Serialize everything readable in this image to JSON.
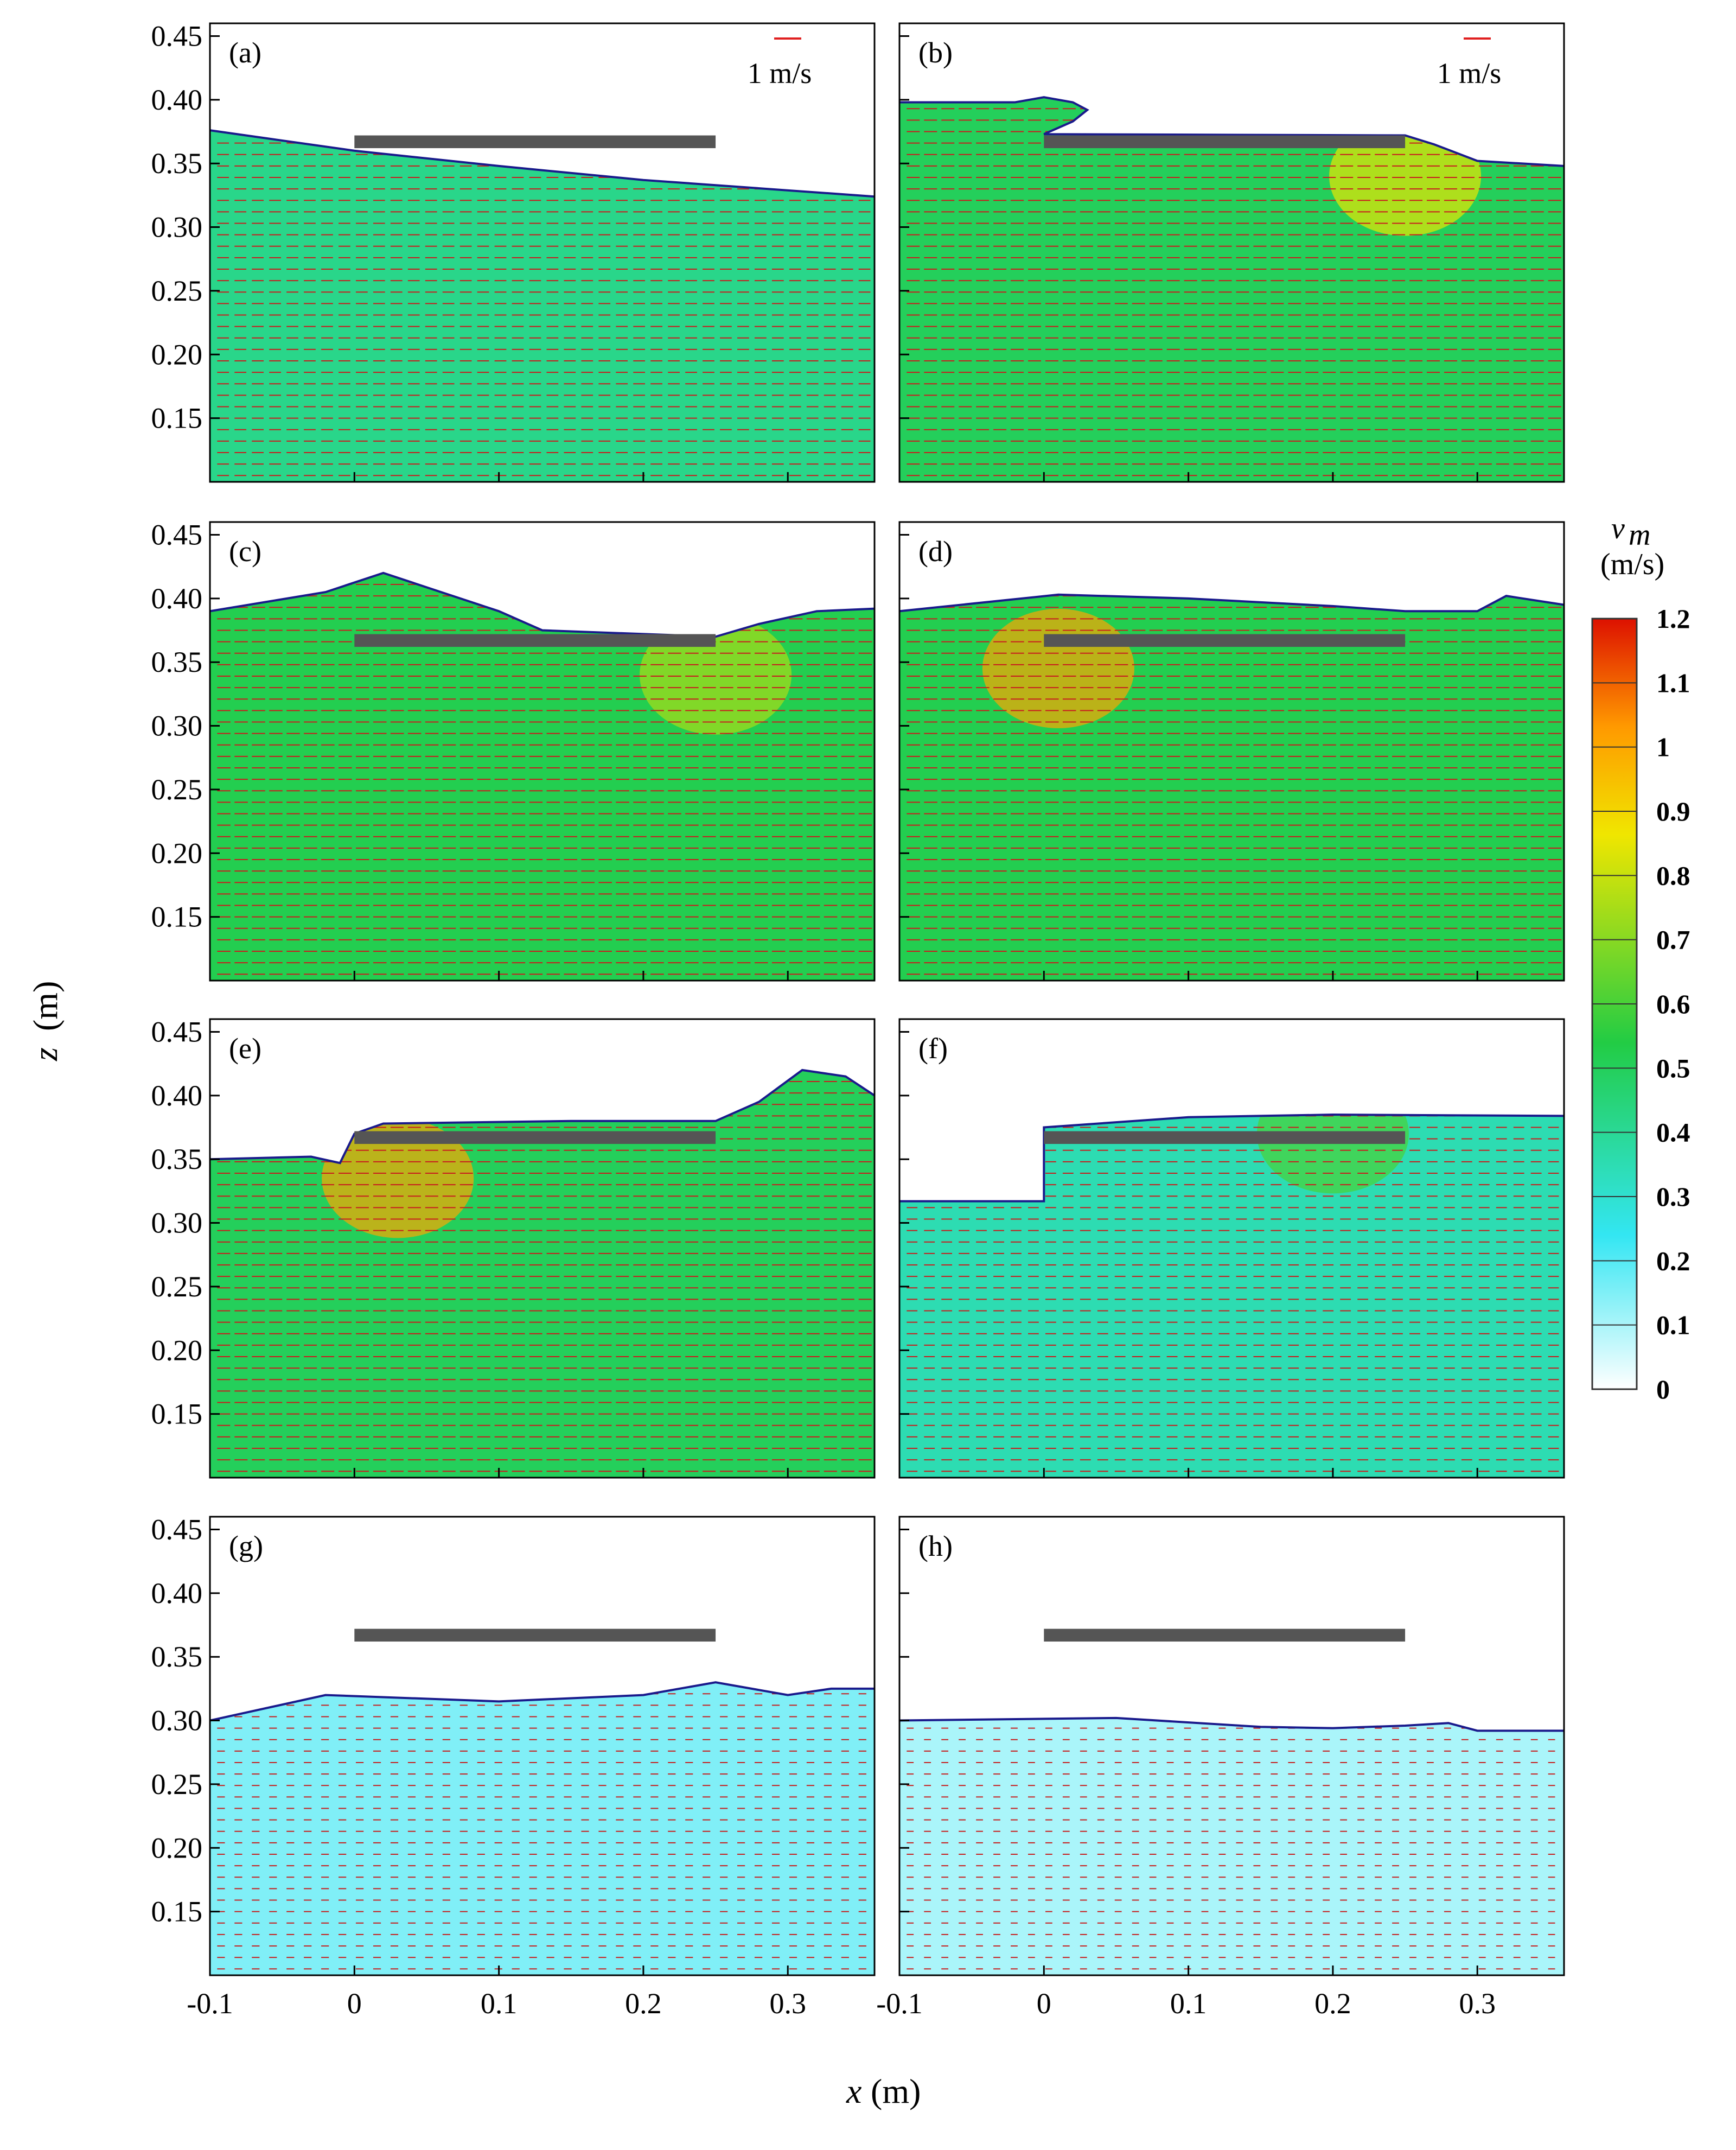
{
  "chart_data": {
    "type": "vector-field",
    "xlabel": "x",
    "xunit": "(m)",
    "ylabel": "z",
    "yunit": "(m)",
    "xlim": [
      -0.1,
      0.36
    ],
    "ylim": [
      0.1,
      0.46
    ],
    "xticks": [
      -0.1,
      0,
      0.1,
      0.2,
      0.3
    ],
    "xtick_labels": [
      "-0.1",
      "0",
      "0.1",
      "0.2",
      "0.3"
    ],
    "yticks": [
      0.15,
      0.2,
      0.25,
      0.3,
      0.35,
      0.4,
      0.45
    ],
    "ytick_labels": [
      "0.15",
      "0.20",
      "0.25",
      "0.30",
      "0.35",
      "0.40",
      "0.45"
    ],
    "reference_vector": {
      "label": "1 m/s",
      "color": "#e02020"
    },
    "deck": {
      "x_start": 0,
      "x_end": 0.25,
      "z_bottom": 0.362,
      "z_top": 0.372,
      "color": "#555555"
    },
    "colorbar": {
      "label_var": "v",
      "label_sub": "m",
      "label_unit": "(m/s)",
      "min": 0,
      "max": 1.2,
      "ticks": [
        0,
        0.1,
        0.2,
        0.3,
        0.4,
        0.5,
        0.6,
        0.7,
        0.8,
        0.9,
        1,
        1.1,
        1.2
      ],
      "tick_labels": [
        "0",
        "0.1",
        "0.2",
        "0.3",
        "0.4",
        "0.5",
        "0.6",
        "0.7",
        "0.8",
        "0.9",
        "1",
        "1.1",
        "1.2"
      ],
      "colors": [
        "#ffffff",
        "#33e6f2",
        "#22cc44",
        "#f0e600",
        "#ff9900",
        "#dd1100"
      ]
    },
    "panels": [
      {
        "label": "(a)",
        "show_reference": true,
        "speed": 0.42,
        "surface": [
          [
            -0.1,
            0.376
          ],
          [
            0,
            0.36
          ],
          [
            0.1,
            0.348
          ],
          [
            0.2,
            0.337
          ],
          [
            0.36,
            0.324
          ]
        ],
        "hotspots": []
      },
      {
        "label": "(b)",
        "show_reference": true,
        "speed": 0.5,
        "surface": [
          [
            -0.1,
            0.398
          ],
          [
            -0.02,
            0.398
          ],
          [
            0.0,
            0.402
          ],
          [
            0.02,
            0.398
          ],
          [
            0.03,
            0.392
          ],
          [
            0.02,
            0.383
          ],
          [
            0.0,
            0.373
          ],
          [
            0.25,
            0.372
          ],
          [
            0.27,
            0.365
          ],
          [
            0.3,
            0.352
          ],
          [
            0.36,
            0.348
          ]
        ],
        "hotspots": [
          [
            0.25,
            0.34,
            0.85
          ]
        ]
      },
      {
        "label": "(c)",
        "show_reference": false,
        "speed": 0.52,
        "surface": [
          [
            -0.1,
            0.39
          ],
          [
            -0.02,
            0.405
          ],
          [
            0.02,
            0.42
          ],
          [
            0.06,
            0.405
          ],
          [
            0.1,
            0.39
          ],
          [
            0.13,
            0.375
          ],
          [
            0.25,
            0.37
          ],
          [
            0.28,
            0.38
          ],
          [
            0.32,
            0.39
          ],
          [
            0.36,
            0.392
          ]
        ],
        "hotspots": [
          [
            0.25,
            0.34,
            0.75
          ]
        ]
      },
      {
        "label": "(d)",
        "show_reference": false,
        "speed": 0.52,
        "surface": [
          [
            -0.1,
            0.39
          ],
          [
            0.01,
            0.403
          ],
          [
            0.1,
            0.4
          ],
          [
            0.2,
            0.394
          ],
          [
            0.25,
            0.39
          ],
          [
            0.3,
            0.39
          ],
          [
            0.32,
            0.402
          ],
          [
            0.36,
            0.395
          ]
        ],
        "hotspots": [
          [
            0.01,
            0.345,
            1.0
          ]
        ]
      },
      {
        "label": "(e)",
        "show_reference": false,
        "speed": 0.5,
        "surface": [
          [
            -0.1,
            0.35
          ],
          [
            -0.03,
            0.352
          ],
          [
            -0.01,
            0.347
          ],
          [
            0.0,
            0.37
          ],
          [
            0.02,
            0.378
          ],
          [
            0.15,
            0.38
          ],
          [
            0.25,
            0.38
          ],
          [
            0.28,
            0.395
          ],
          [
            0.31,
            0.42
          ],
          [
            0.34,
            0.415
          ],
          [
            0.36,
            0.4
          ]
        ],
        "hotspots": [
          [
            0.03,
            0.335,
            1.0
          ]
        ]
      },
      {
        "label": "(f)",
        "show_reference": false,
        "speed": 0.35,
        "surface": [
          [
            -0.1,
            0.317
          ],
          [
            0.0,
            0.317
          ],
          [
            0.0,
            0.375
          ],
          [
            0.1,
            0.383
          ],
          [
            0.2,
            0.385
          ],
          [
            0.36,
            0.384
          ]
        ],
        "hotspots": [
          [
            0.2,
            0.37,
            0.6
          ]
        ]
      },
      {
        "label": "(g)",
        "show_reference": false,
        "speed": 0.15,
        "surface": [
          [
            -0.1,
            0.3
          ],
          [
            -0.02,
            0.32
          ],
          [
            0.1,
            0.315
          ],
          [
            0.2,
            0.32
          ],
          [
            0.25,
            0.33
          ],
          [
            0.3,
            0.32
          ],
          [
            0.33,
            0.325
          ],
          [
            0.36,
            0.325
          ]
        ],
        "hotspots": []
      },
      {
        "label": "(h)",
        "show_reference": false,
        "speed": 0.1,
        "surface": [
          [
            -0.1,
            0.3
          ],
          [
            0.05,
            0.302
          ],
          [
            0.15,
            0.295
          ],
          [
            0.2,
            0.294
          ],
          [
            0.25,
            0.296
          ],
          [
            0.28,
            0.298
          ],
          [
            0.3,
            0.292
          ],
          [
            0.36,
            0.292
          ]
        ],
        "hotspots": []
      }
    ]
  }
}
